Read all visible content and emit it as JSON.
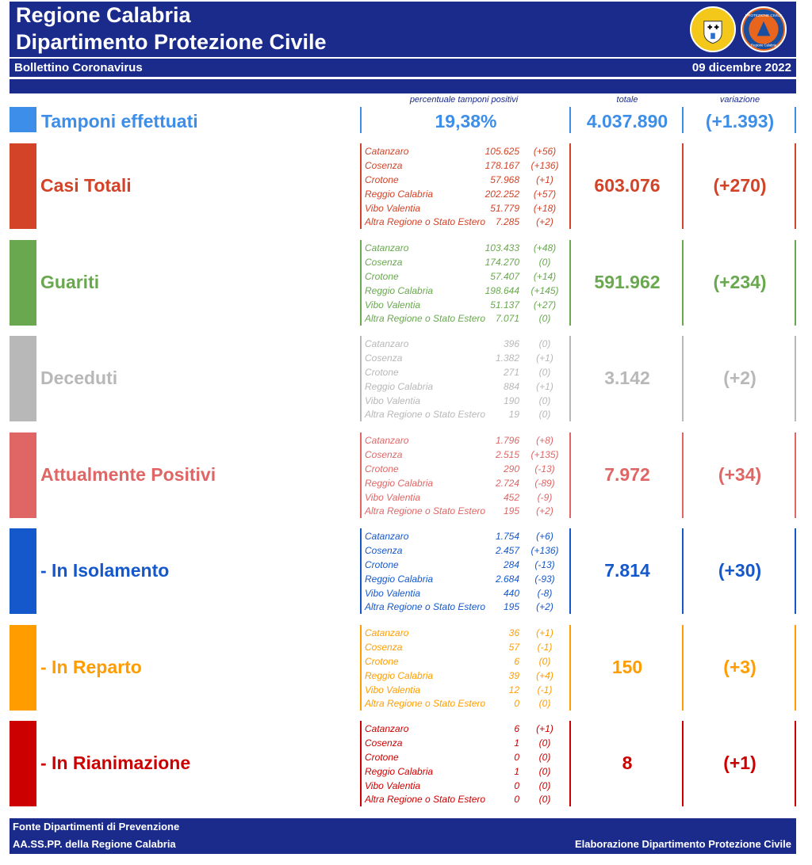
{
  "header": {
    "title_line1": "Regione Calabria",
    "title_line2": "Dipartimento Protezione Civile",
    "subtitle": "Bollettino Coronavirus",
    "date": "09 dicembre 2022"
  },
  "columns": {
    "percent": "percentuale tamponi positivi",
    "total": "totale",
    "variation": "variazione"
  },
  "tamponi": {
    "label": "Tamponi effettuati",
    "percent": "19,38%",
    "total": "4.037.890",
    "variation": "(+1.393)",
    "color": "#3d8ee8"
  },
  "sections": [
    {
      "label": "Casi Totali",
      "color": "#d24328",
      "total": "603.076",
      "variation": "(+270)",
      "rows": [
        {
          "name": "Catanzaro",
          "value": "105.625",
          "delta": "(+56)"
        },
        {
          "name": "Cosenza",
          "value": "178.167",
          "delta": "(+136)"
        },
        {
          "name": "Crotone",
          "value": "57.968",
          "delta": "(+1)"
        },
        {
          "name": "Reggio Calabria",
          "value": "202.252",
          "delta": "(+57)"
        },
        {
          "name": "Vibo Valentia",
          "value": "51.779",
          "delta": "(+18)"
        },
        {
          "name": "Altra Regione o Stato Estero",
          "value": "7.285",
          "delta": "(+2)"
        }
      ]
    },
    {
      "label": "Guariti",
      "color": "#69a84f",
      "total": "591.962",
      "variation": "(+234)",
      "rows": [
        {
          "name": "Catanzaro",
          "value": "103.433",
          "delta": "(+48)"
        },
        {
          "name": "Cosenza",
          "value": "174.270",
          "delta": "(0)"
        },
        {
          "name": "Crotone",
          "value": "57.407",
          "delta": "(+14)"
        },
        {
          "name": "Reggio Calabria",
          "value": "198.644",
          "delta": "(+145)"
        },
        {
          "name": "Vibo Valentia",
          "value": "51.137",
          "delta": "(+27)"
        },
        {
          "name": "Altra Regione o Stato Estero",
          "value": "7.071",
          "delta": "(0)"
        }
      ]
    },
    {
      "label": "Deceduti",
      "color": "#b8b8b8",
      "total": "3.142",
      "variation": "(+2)",
      "rows": [
        {
          "name": "Catanzaro",
          "value": "396",
          "delta": "(0)"
        },
        {
          "name": "Cosenza",
          "value": "1.382",
          "delta": "(+1)"
        },
        {
          "name": "Crotone",
          "value": "271",
          "delta": "(0)"
        },
        {
          "name": "Reggio Calabria",
          "value": "884",
          "delta": "(+1)"
        },
        {
          "name": "Vibo Valentia",
          "value": "190",
          "delta": "(0)"
        },
        {
          "name": "Altra Regione o Stato Estero",
          "value": "19",
          "delta": "(0)"
        }
      ]
    },
    {
      "label": "Attualmente Positivi",
      "color": "#e06666",
      "total": "7.972",
      "variation": "(+34)",
      "rows": [
        {
          "name": "Catanzaro",
          "value": "1.796",
          "delta": "(+8)"
        },
        {
          "name": "Cosenza",
          "value": "2.515",
          "delta": "(+135)"
        },
        {
          "name": "Crotone",
          "value": "290",
          "delta": "(-13)"
        },
        {
          "name": "Reggio Calabria",
          "value": "2.724",
          "delta": "(-89)"
        },
        {
          "name": "Vibo Valentia",
          "value": "452",
          "delta": "(-9)"
        },
        {
          "name": "Altra Regione o Stato Estero",
          "value": "195",
          "delta": "(+2)"
        }
      ]
    },
    {
      "label": " - In Isolamento",
      "color": "#1558cc",
      "total": "7.814",
      "variation": "(+30)",
      "rows": [
        {
          "name": "Catanzaro",
          "value": "1.754",
          "delta": "(+6)"
        },
        {
          "name": "Cosenza",
          "value": "2.457",
          "delta": "(+136)"
        },
        {
          "name": "Crotone",
          "value": "284",
          "delta": "(-13)"
        },
        {
          "name": "Reggio Calabria",
          "value": "2.684",
          "delta": "(-93)"
        },
        {
          "name": "Vibo Valentia",
          "value": "440",
          "delta": "(-8)"
        },
        {
          "name": "Altra Regione o Stato Estero",
          "value": "195",
          "delta": "(+2)"
        }
      ]
    },
    {
      "label": " - In Reparto",
      "color": "#ff9d00",
      "total": "150",
      "variation": "(+3)",
      "rows": [
        {
          "name": "Catanzaro",
          "value": "36",
          "delta": "(+1)"
        },
        {
          "name": "Cosenza",
          "value": "57",
          "delta": "(-1)"
        },
        {
          "name": "Crotone",
          "value": "6",
          "delta": "(0)"
        },
        {
          "name": "Reggio Calabria",
          "value": "39",
          "delta": "(+4)"
        },
        {
          "name": "Vibo Valentia",
          "value": "12",
          "delta": "(-1)"
        },
        {
          "name": "Altra Regione o Stato Estero",
          "value": "0",
          "delta": "(0)"
        }
      ]
    },
    {
      "label": " - In Rianimazione",
      "color": "#cc0000",
      "total": "8",
      "variation": "(+1)",
      "rows": [
        {
          "name": "Catanzaro",
          "value": "6",
          "delta": "(+1)"
        },
        {
          "name": "Cosenza",
          "value": "1",
          "delta": "(0)"
        },
        {
          "name": "Crotone",
          "value": "0",
          "delta": "(0)"
        },
        {
          "name": "Reggio Calabria",
          "value": "1",
          "delta": "(0)"
        },
        {
          "name": "Vibo Valentia",
          "value": "0",
          "delta": "(0)"
        },
        {
          "name": "Altra Regione o Stato Estero",
          "value": "0",
          "delta": "(0)"
        }
      ]
    }
  ],
  "footer": {
    "source_line1": "Fonte Dipartimenti di Prevenzione",
    "source_line2": "AA.SS.PP.  della Regione Calabria",
    "credit": "Elaborazione Dipartimento Protezione Civile"
  },
  "logos": {
    "region_logo_icon": "calabria-coat-of-arms-icon",
    "civil_protection_logo_icon": "protezione-civile-icon",
    "civil_protection_logo_text": "PROTEZIONE CIVILE",
    "civil_protection_logo_subtext": "Regione Calabria"
  }
}
